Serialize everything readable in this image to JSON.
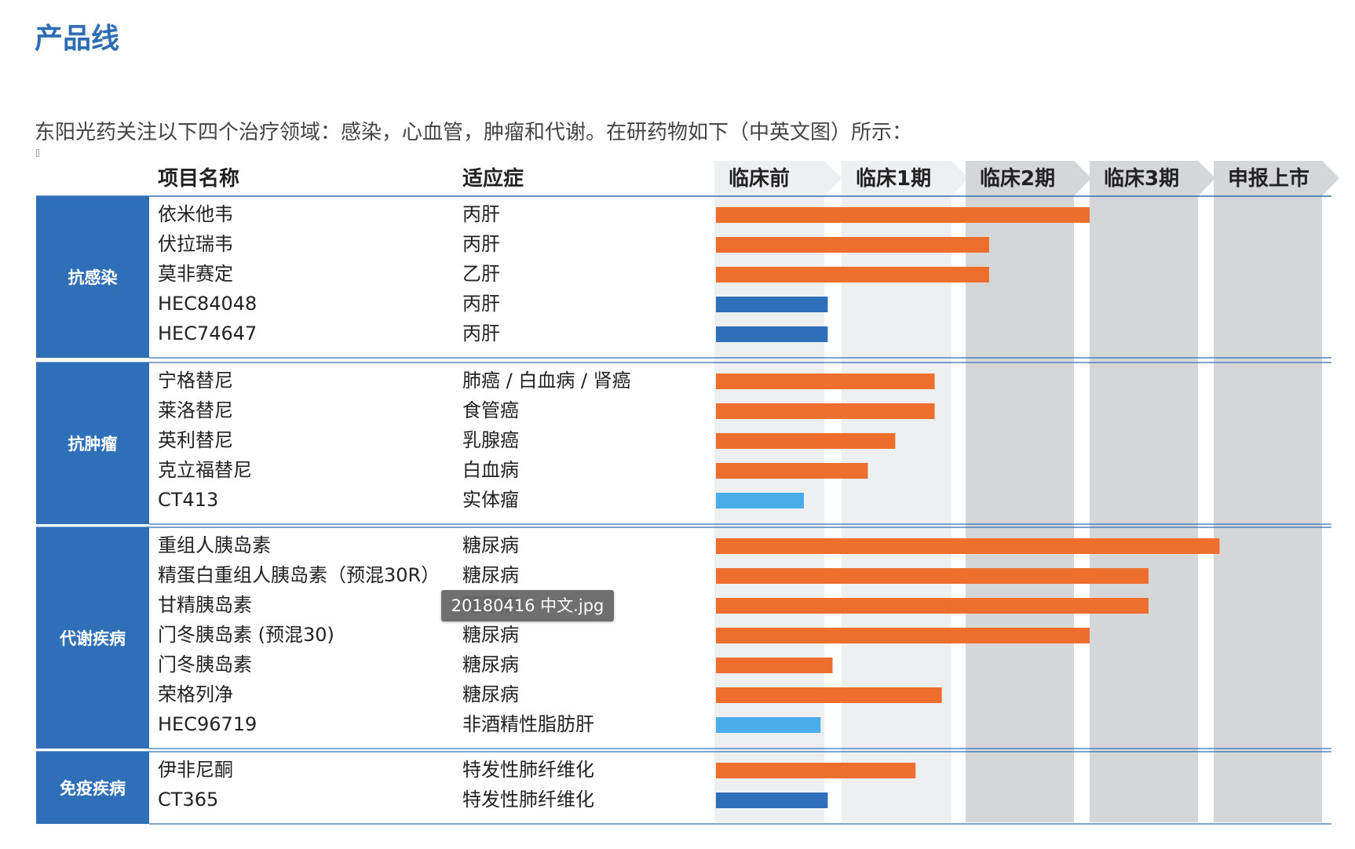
{
  "page": {
    "title": "产品线",
    "intro": "东阳光药关注以下四个治疗领域：感染，心血管，肿瘤和代谢。在研药物如下（中英文图）所示：",
    "tooltip": "20180416 中文.jpg"
  },
  "chart_data": {
    "type": "bar",
    "headers": {
      "project": "项目名称",
      "indication": "适应症"
    },
    "stages": [
      "临床前",
      "临床1期",
      "临床2期",
      "临床3期",
      "申报上市"
    ],
    "colors": {
      "orange": "#ee6f2d",
      "dark_blue": "#2e6fb8",
      "light_blue": "#49ade8",
      "group_bg": "#2e6fb8",
      "stage_light": "#eeeff0",
      "stage_dark": "#d5d6d8"
    },
    "groups": [
      {
        "name": "抗感染",
        "rows": [
          {
            "name": "依米他韦",
            "indication": "丙肝",
            "progress": 3.0,
            "color": "orange"
          },
          {
            "name": "伏拉瑞韦",
            "indication": "丙肝",
            "progress": 2.2,
            "color": "orange"
          },
          {
            "name": "莫非赛定",
            "indication": "乙肝",
            "progress": 2.2,
            "color": "orange"
          },
          {
            "name": "HEC84048",
            "indication": "丙肝",
            "progress": 0.95,
            "color": "dark_blue"
          },
          {
            "name": "HEC74647",
            "indication": "丙肝",
            "progress": 0.95,
            "color": "dark_blue"
          }
        ]
      },
      {
        "name": "抗肿瘤",
        "rows": [
          {
            "name": "宁格替尼",
            "indication": "肺癌 / 白血病 / 肾癌",
            "progress": 1.78,
            "color": "orange"
          },
          {
            "name": "莱洛替尼",
            "indication": "食管癌",
            "progress": 1.78,
            "color": "orange"
          },
          {
            "name": "英利替尼",
            "indication": "乳腺癌",
            "progress": 1.45,
            "color": "orange"
          },
          {
            "name": "克立福替尼",
            "indication": "白血病",
            "progress": 1.22,
            "color": "orange"
          },
          {
            "name": "CT413",
            "indication": "实体瘤",
            "progress": 0.75,
            "color": "light_blue"
          }
        ]
      },
      {
        "name": "代谢疾病",
        "rows": [
          {
            "name": "重组人胰岛素",
            "indication": "糖尿病",
            "progress": 4.05,
            "color": "orange"
          },
          {
            "name": "精蛋白重组人胰岛素（预混30R）",
            "indication": "糖尿病",
            "progress": 3.5,
            "color": "orange"
          },
          {
            "name": "甘精胰岛素",
            "indication": "糖尿病",
            "progress": 3.5,
            "color": "orange"
          },
          {
            "name": "门冬胰岛素 (预混30)",
            "indication": "糖尿病",
            "progress": 3.0,
            "color": "orange"
          },
          {
            "name": "门冬胰岛素",
            "indication": "糖尿病",
            "progress": 0.99,
            "color": "orange"
          },
          {
            "name": "荣格列净",
            "indication": "糖尿病",
            "progress": 1.84,
            "color": "orange"
          },
          {
            "name": "HEC96719",
            "indication": "非酒精性脂肪肝",
            "progress": 0.89,
            "color": "light_blue"
          }
        ]
      },
      {
        "name": "免疫疾病",
        "rows": [
          {
            "name": "伊非尼酮",
            "indication": "特发性肺纤维化",
            "progress": 1.62,
            "color": "orange"
          },
          {
            "name": "CT365",
            "indication": "特发性肺纤维化",
            "progress": 0.95,
            "color": "dark_blue"
          }
        ]
      }
    ]
  }
}
